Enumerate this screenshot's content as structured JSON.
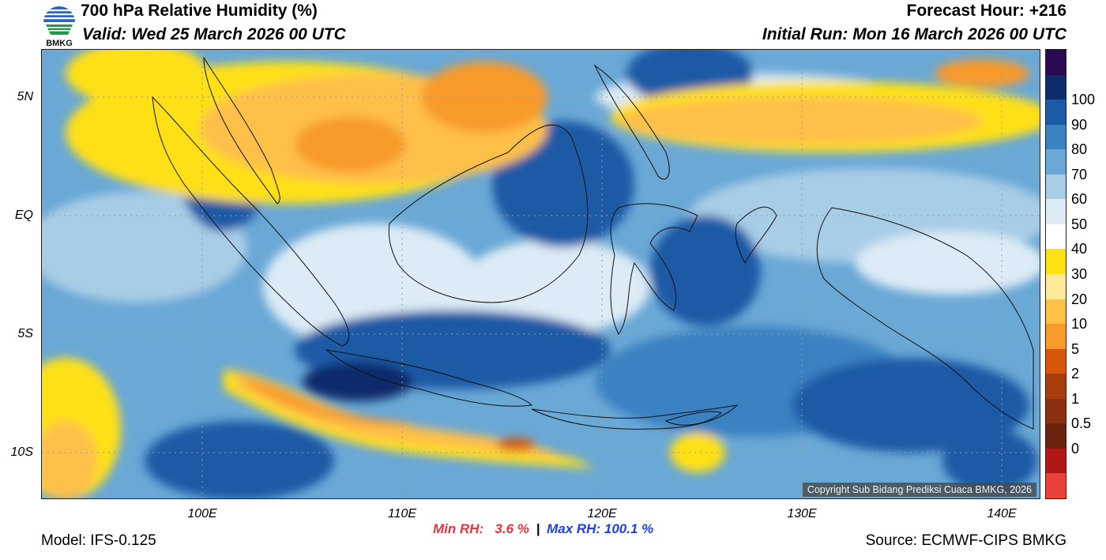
{
  "header": {
    "title": "700 hPa Relative Humidity (%)",
    "valid": "Valid: Wed 25 March 2026 00 UTC",
    "forecast_hour": "Forecast Hour: +216",
    "initial_run": "Initial Run: Mon 16 March 2026 00 UTC"
  },
  "logo": {
    "text": "BMKG",
    "icon": "bmkg-logo-icon"
  },
  "axes": {
    "lat_labels": [
      "5N",
      "EQ",
      "5S",
      "10S"
    ],
    "lon_labels": [
      "100E",
      "110E",
      "120E",
      "130E",
      "140E"
    ],
    "lat_values": [
      5,
      0,
      -5,
      -10
    ],
    "lon_values": [
      100,
      110,
      120,
      130,
      140
    ],
    "lon_range": [
      92,
      142
    ],
    "lat_range": [
      -12,
      7
    ]
  },
  "colorbar": {
    "labels": [
      "100",
      "90",
      "80",
      "70",
      "60",
      "50",
      "40",
      "30",
      "20",
      "10",
      "5",
      "2",
      "1",
      "0.5",
      "0"
    ],
    "colors": [
      "#2a0a52",
      "#0c2c6c",
      "#1d5aa6",
      "#3a82c2",
      "#6aa8d6",
      "#a8cde6",
      "#dcebf5",
      "#ffffff",
      "#ffe014",
      "#ffe899",
      "#ffc04a",
      "#f79a2a",
      "#d6560a",
      "#a83d0e",
      "#8a2f10",
      "#6b2410",
      "#b01818",
      "#e8423a"
    ]
  },
  "copyright": "Copyright Sub Bidang Prediksi Cuaca BMKG, 2026",
  "stats": {
    "min_label": "Min RH:",
    "min_value": "3.6 %",
    "separator": "|",
    "max_label": "Max RH:",
    "max_value": "100.1 %"
  },
  "footer": {
    "model": "Model: IFS-0.125",
    "source": "Source: ECMWF-CIPS BMKG"
  },
  "colors": {
    "dry_yellow": "#ffe014",
    "dry_orange": "#f79a2a",
    "moist_blue": "#1d5aa6",
    "min_color": "#e8333c",
    "max_color": "#1f3fe0"
  }
}
